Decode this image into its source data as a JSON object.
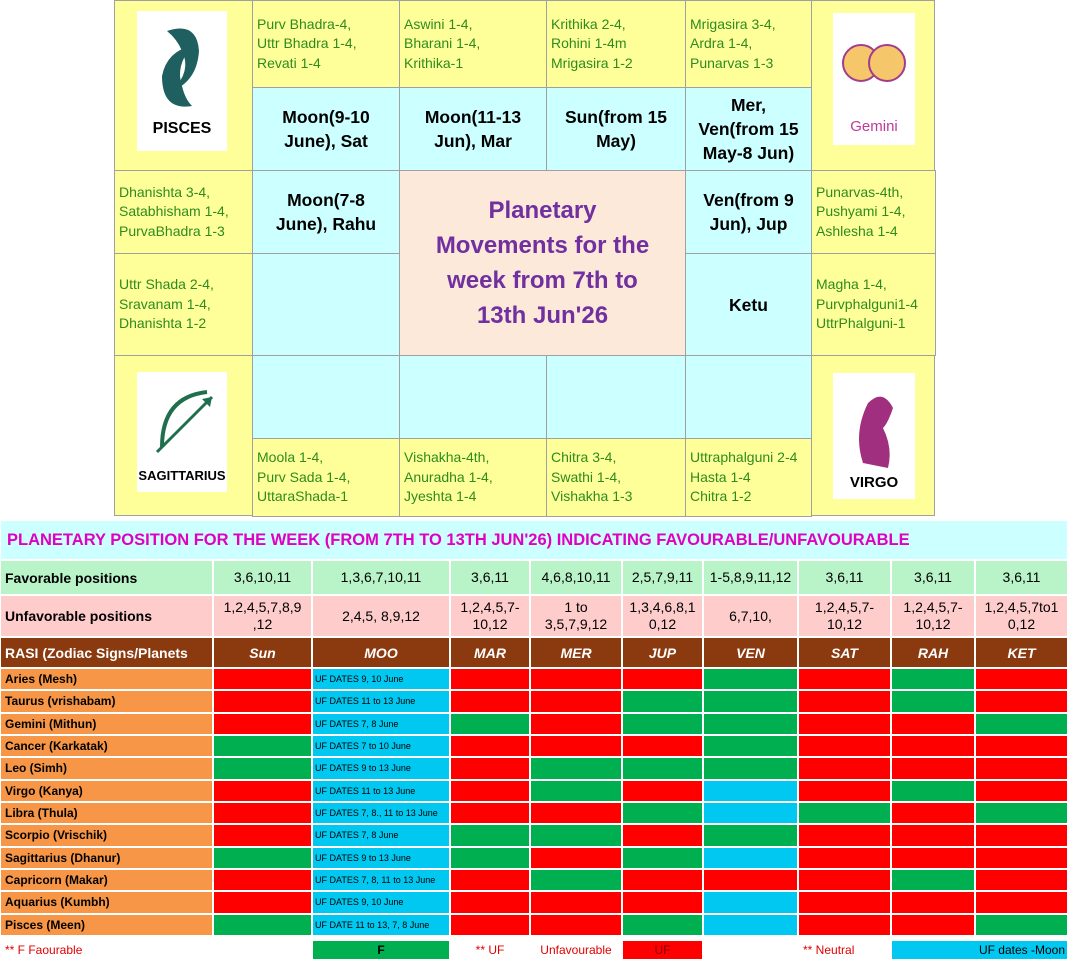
{
  "chart": {
    "title": [
      "Planetary",
      "Movements for the",
      "week from 7th to",
      "13th Jun'26"
    ],
    "signs": {
      "pisces": "PISCES",
      "gemini": "Gemini",
      "sagittarius": "SAGITTARIUS",
      "virgo": "VIRGO"
    },
    "cells": [
      {
        "lines": [
          "Purv Bhadra-4,",
          "Uttr Bhadra 1-4,",
          "Revati 1-4"
        ]
      },
      {
        "lines": [
          "Aswini 1-4,",
          "Bharani 1-4,",
          "Krithika-1"
        ]
      },
      {
        "lines": [
          "Krithika 2-4,",
          "Rohini 1-4m",
          "Mrigasira 1-2"
        ]
      },
      {
        "lines": [
          "Mrigasira 3-4,",
          "Ardra 1-4,",
          "Punarvas 1-3"
        ]
      },
      {
        "lines": [
          "Moon(9-10",
          "June), Sat"
        ]
      },
      {
        "lines": [
          "Moon(11-13",
          "Jun), Mar"
        ]
      },
      {
        "lines": [
          "Sun(from 15",
          "May)"
        ]
      },
      {
        "lines": [
          "Mer,",
          "Ven(from 15",
          "May-8 Jun)"
        ]
      },
      {
        "lines": [
          "Dhanishta 3-4,",
          "Satabhisham 1-4,",
          "PurvaBhadra 1-3"
        ]
      },
      {
        "lines": [
          "Moon(7-8",
          "June), Rahu"
        ]
      },
      {
        "lines": [
          "Ven(from 9",
          "Jun), Jup"
        ]
      },
      {
        "lines": [
          "Punarvas-4th,",
          "Pushyami 1-4,",
          "Ashlesha 1-4"
        ]
      },
      {
        "lines": [
          "Uttr Shada 2-4,",
          "Sravanam 1-4,",
          "Dhanishta 1-2"
        ]
      },
      {
        "lines": [
          "Ketu"
        ]
      },
      {
        "lines": [
          "Magha 1-4,",
          "Purvphalguni1-4",
          "UttrPhalguni-1"
        ]
      },
      {
        "lines": [
          "Moola 1-4,",
          "Purv Sada 1-4,",
          "UttaraShada-1"
        ]
      },
      {
        "lines": [
          "Vishakha-4th,",
          "Anuradha 1-4,",
          "Jyeshta 1-4"
        ]
      },
      {
        "lines": [
          "Chitra 3-4,",
          "Swathi 1-4,",
          "Vishakha 1-3"
        ]
      },
      {
        "lines": [
          "Uttraphalguni 2-4",
          "Hasta 1-4",
          "Chitra 1-2"
        ]
      }
    ]
  },
  "table": {
    "title": "PLANETARY POSITION FOR THE WEEK (FROM 7TH TO 13TH JUN'26) INDICATING FAVOURABLE/UNFAVOURABLE",
    "favorable": {
      "label": "Favorable positions",
      "values": [
        [
          "3,6,10,11"
        ],
        [
          "1,3,6,7,10,11"
        ],
        [
          "3,6,11"
        ],
        [
          "4,6,8,10,11"
        ],
        [
          "2,5,7,9,11"
        ],
        [
          "1-5,8,9,11,12"
        ],
        [
          "3,6,11"
        ],
        [
          "3,6,11"
        ],
        [
          "3,6,11"
        ]
      ]
    },
    "unfavorable": {
      "label": "Unfavorable positions",
      "values": [
        [
          "1,2,4,5,7,8,9",
          ",12"
        ],
        [
          "2,4,5, 8,9,12"
        ],
        [
          "1,2,4,5,7-",
          "10,12"
        ],
        [
          "1 to",
          "3,5,7,9,12"
        ],
        [
          "1,3,4,6,8,1",
          "0,12"
        ],
        [
          "6,7,10,"
        ],
        [
          "1,2,4,5,7-",
          "10,12"
        ],
        [
          "1,2,4,5,7-",
          "10,12"
        ],
        [
          "1,2,4,5,7to1",
          "0,12"
        ]
      ]
    },
    "header": [
      "RASI (Zodiac Signs/Planets",
      "Sun",
      "MOO",
      "MAR",
      "MER",
      "JUP",
      "VEN",
      "SAT",
      "RAH",
      "KET"
    ],
    "rows": [
      {
        "sign": "Aries (Mesh)",
        "moon": "UF DATES 9, 10 June",
        "colors": [
          "#ff0000",
          "#ff0000",
          "#ff0000",
          "#ff0000",
          "#00b050",
          "#ff0000",
          "#00b050",
          "#ff0000"
        ]
      },
      {
        "sign": "Taurus (vrishabam)",
        "moon": "UF DATES 11 to 13 June",
        "colors": [
          "#ff0000",
          "#ff0000",
          "#ff0000",
          "#00b050",
          "#00b050",
          "#ff0000",
          "#00b050",
          "#ff0000"
        ]
      },
      {
        "sign": "Gemini (Mithun)",
        "moon": "UF DATES  7, 8 June",
        "colors": [
          "#ff0000",
          "#00b050",
          "#ff0000",
          "#00b050",
          "#00b050",
          "#ff0000",
          "#ff0000",
          "#00b050"
        ]
      },
      {
        "sign": "Cancer (Karkatak)",
        "moon": "UF DATES 7 to 10 June",
        "colors": [
          "#00b050",
          "#ff0000",
          "#ff0000",
          "#ff0000",
          "#00b050",
          "#ff0000",
          "#ff0000",
          "#ff0000"
        ]
      },
      {
        "sign": "Leo (Simh)",
        "moon": "UF DATES 9 to 13 June",
        "colors": [
          "#00b050",
          "#ff0000",
          "#00b050",
          "#00b050",
          "#00b050",
          "#ff0000",
          "#ff0000",
          "#ff0000"
        ]
      },
      {
        "sign": "Virgo (Kanya)",
        "moon": "UF DATES 11 to 13 June",
        "colors": [
          "#ff0000",
          "#ff0000",
          "#00b050",
          "#ff0000",
          "#00c8f0",
          "#ff0000",
          "#00b050",
          "#ff0000"
        ]
      },
      {
        "sign": "Libra (Thula)",
        "moon": "UF DATES 7, 8., 11 to 13 June",
        "colors": [
          "#ff0000",
          "#ff0000",
          "#ff0000",
          "#00b050",
          "#00c8f0",
          "#00b050",
          "#ff0000",
          "#00b050"
        ]
      },
      {
        "sign": "Scorpio (Vrischik)",
        "moon": "UF DATES 7, 8 June",
        "colors": [
          "#ff0000",
          "#00b050",
          "#00b050",
          "#ff0000",
          "#00b050",
          "#ff0000",
          "#ff0000",
          "#ff0000"
        ]
      },
      {
        "sign": "Sagittarius (Dhanur)",
        "moon": "UF DATES 9 to 13 June",
        "colors": [
          "#00b050",
          "#00b050",
          "#ff0000",
          "#00b050",
          "#00c8f0",
          "#ff0000",
          "#ff0000",
          "#ff0000"
        ]
      },
      {
        "sign": "Capricorn (Makar)",
        "moon": "UF DATES 7, 8, 11 to 13 June",
        "colors": [
          "#ff0000",
          "#ff0000",
          "#00b050",
          "#ff0000",
          "#ff0000",
          "#ff0000",
          "#00b050",
          "#ff0000"
        ]
      },
      {
        "sign": "Aquarius (Kumbh)",
        "moon": "UF DATES 9, 10 June",
        "colors": [
          "#ff0000",
          "#ff0000",
          "#ff0000",
          "#ff0000",
          "#00c8f0",
          "#ff0000",
          "#ff0000",
          "#ff0000"
        ]
      },
      {
        "sign": "Pisces (Meen)",
        "moon": "UF DATE  11 to 13, 7, 8 June",
        "colors": [
          "#00b050",
          "#ff0000",
          "#ff0000",
          "#00b050",
          "#00c8f0",
          "#ff0000",
          "#ff0000",
          "#00b050"
        ]
      }
    ],
    "legend": [
      "**  F   Faourable",
      "F",
      "** UF",
      "Unfavourable",
      "UF",
      "** Neutral",
      "UF dates -Moon"
    ]
  }
}
